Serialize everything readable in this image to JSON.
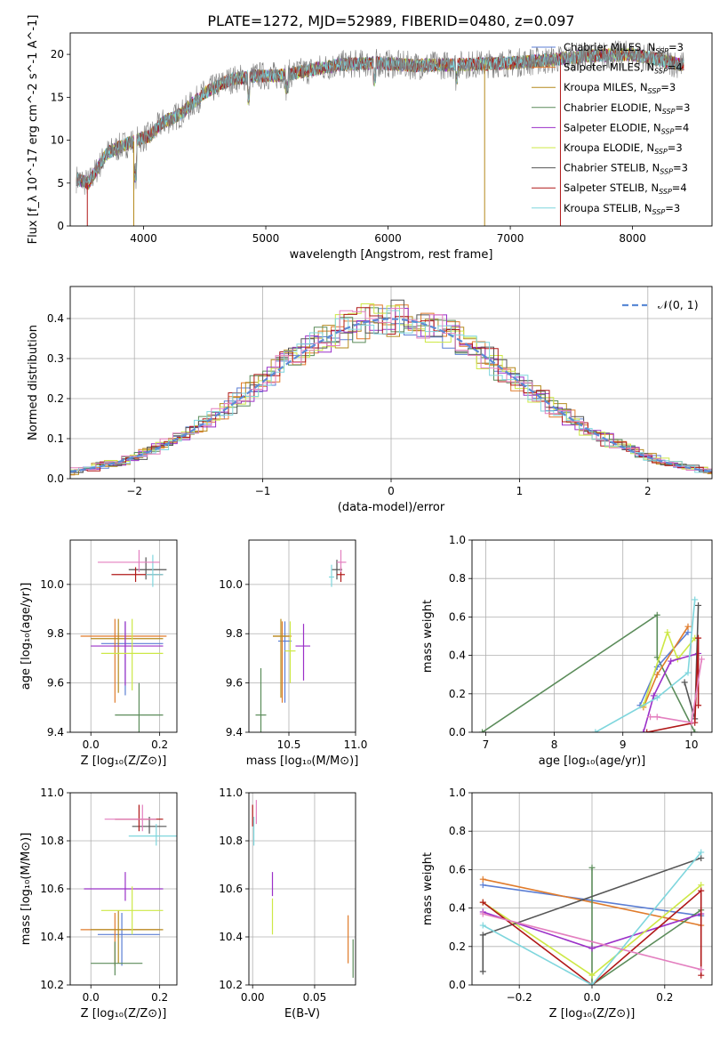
{
  "figure": {
    "title": "PLATE=1272, MJD=52989, FIBERID=0480, z=0.097"
  },
  "colors": {
    "Chabrier MILES": "#5b7ed4",
    "Salpeter MILES": "#e07b2b",
    "Kroupa MILES": "#b58a1e",
    "Chabrier ELODIE": "#5b8c5a",
    "Salpeter ELODIE": "#9b30c8",
    "Kroupa ELODIE": "#cde846",
    "Chabrier STELIB": "#555555",
    "Salpeter STELIB": "#b01818",
    "Kroupa STELIB": "#7fd6dd",
    "pink": "#e37fbf"
  },
  "chart_data": [
    {
      "id": "spectrum",
      "type": "line",
      "xlabel": "wavelength [Angstrom, rest frame]",
      "ylabel": "Flux [f_λ 10^-17 erg cm^-2 s^-1 A^-1]",
      "xlim": [
        3400,
        8650
      ],
      "ylim": [
        0,
        22.5
      ],
      "xticks": [
        4000,
        5000,
        6000,
        7000,
        8000
      ],
      "yticks": [
        0,
        5,
        10,
        15,
        20
      ],
      "grid": false,
      "legend_position": "right",
      "legend": [
        {
          "label": "Chabrier MILES, N",
          "sub": "SSP",
          "suffix": "=3",
          "color_key": "Chabrier MILES"
        },
        {
          "label": "Salpeter MILES, N",
          "sub": "SSP",
          "suffix": "=4",
          "color_key": "Salpeter MILES"
        },
        {
          "label": "Kroupa MILES, N",
          "sub": "SSP",
          "suffix": "=3",
          "color_key": "Kroupa MILES"
        },
        {
          "label": "Chabrier ELODIE, N",
          "sub": "SSP",
          "suffix": "=3",
          "color_key": "Chabrier ELODIE"
        },
        {
          "label": "Salpeter ELODIE, N",
          "sub": "SSP",
          "suffix": "=4",
          "color_key": "Salpeter ELODIE"
        },
        {
          "label": "Kroupa ELODIE, N",
          "sub": "SSP",
          "suffix": "=3",
          "color_key": "Kroupa ELODIE"
        },
        {
          "label": "Chabrier STELIB, N",
          "sub": "SSP",
          "suffix": "=3",
          "color_key": "Chabrier STELIB"
        },
        {
          "label": "Salpeter STELIB, N",
          "sub": "SSP",
          "suffix": "=4",
          "color_key": "Salpeter STELIB"
        },
        {
          "label": "Kroupa STELIB, N",
          "sub": "SSP",
          "suffix": "=3",
          "color_key": "Kroupa STELIB"
        }
      ],
      "continuum": [
        [
          3450,
          5.5
        ],
        [
          3550,
          5.0
        ],
        [
          3700,
          8.5
        ],
        [
          3850,
          9.5
        ],
        [
          3950,
          10.0
        ],
        [
          4050,
          10.5
        ],
        [
          4150,
          12.0
        ],
        [
          4300,
          13.0
        ],
        [
          4500,
          15.5
        ],
        [
          4700,
          17.0
        ],
        [
          4900,
          17.5
        ],
        [
          5100,
          17.5
        ],
        [
          5300,
          18.0
        ],
        [
          5600,
          18.8
        ],
        [
          5900,
          19.0
        ],
        [
          6200,
          18.7
        ],
        [
          6600,
          18.8
        ],
        [
          7000,
          19.0
        ],
        [
          7300,
          19.3
        ],
        [
          7600,
          19.8
        ],
        [
          8000,
          20.0
        ],
        [
          8400,
          18.8
        ]
      ]
    },
    {
      "id": "residuals",
      "type": "histogram",
      "xlabel": "(data-model)/error",
      "ylabel": "Normed distribution",
      "xlim": [
        -2.5,
        2.5
      ],
      "ylim": [
        0,
        0.48
      ],
      "xticks": [
        -2,
        -1,
        0,
        1,
        2
      ],
      "yticks": [
        0.0,
        0.1,
        0.2,
        0.3,
        0.4
      ],
      "grid": true,
      "legend": [
        {
          "label": "𝒩(0, 1)",
          "style": "dashed",
          "color": "#5b8ad6"
        }
      ],
      "bin_width": 0.1
    },
    {
      "id": "age-vs-z",
      "type": "errorbar",
      "xlabel": "Z [log₁₀(Z/Z⊙)]",
      "ylabel": "age  [log₁₀(age/yr)]",
      "xlim": [
        -0.06,
        0.25
      ],
      "ylim": [
        9.4,
        10.18
      ],
      "xticks": [
        0.0,
        0.2
      ],
      "yticks": [
        9.4,
        9.6,
        9.8,
        10.0
      ],
      "grid": true,
      "points": [
        {
          "color_key": "Chabrier MILES",
          "x": 0.1,
          "y": 9.76,
          "xerr": [
            0.07,
            0.11
          ],
          "yerr": [
            0.21,
            0.09
          ]
        },
        {
          "color_key": "Salpeter MILES",
          "x": 0.07,
          "y": 9.79,
          "xerr": [
            0.1,
            0.15
          ],
          "yerr": [
            0.27,
            0.07
          ]
        },
        {
          "color_key": "Kroupa MILES",
          "x": 0.08,
          "y": 9.78,
          "xerr": [
            0.08,
            0.13
          ],
          "yerr": [
            0.22,
            0.08
          ]
        },
        {
          "color_key": "Chabrier ELODIE",
          "x": 0.14,
          "y": 9.47,
          "xerr": [
            0.07,
            0.07
          ],
          "yerr": [
            0.08,
            0.13
          ]
        },
        {
          "color_key": "Salpeter ELODIE",
          "x": 0.1,
          "y": 9.75,
          "xerr": [
            0.1,
            0.11
          ],
          "yerr": [
            0.16,
            0.1
          ]
        },
        {
          "color_key": "Kroupa ELODIE",
          "x": 0.12,
          "y": 9.72,
          "xerr": [
            0.09,
            0.09
          ],
          "yerr": [
            0.15,
            0.14
          ]
        },
        {
          "color_key": "Chabrier STELIB",
          "x": 0.16,
          "y": 10.06,
          "xerr": [
            0.05,
            0.06
          ],
          "yerr": [
            0.04,
            0.05
          ]
        },
        {
          "color_key": "Salpeter STELIB",
          "x": 0.13,
          "y": 10.04,
          "xerr": [
            0.07,
            0.08
          ],
          "yerr": [
            0.03,
            0.03
          ]
        },
        {
          "color_key": "Kroupa STELIB",
          "x": 0.18,
          "y": 10.04,
          "xerr": [
            0.02,
            0.03
          ],
          "yerr": [
            0.05,
            0.08
          ]
        },
        {
          "color_key": "pink",
          "x": 0.14,
          "y": 10.09,
          "xerr": [
            0.12,
            0.06
          ],
          "yerr": [
            0.04,
            0.05
          ]
        }
      ]
    },
    {
      "id": "age-vs-mass",
      "type": "errorbar",
      "xlabel": "mass [log₁₀(M/M⊙)]",
      "ylabel": "",
      "xlim": [
        10.2,
        11.0
      ],
      "ylim": [
        9.4,
        10.18
      ],
      "xticks": [
        10.5,
        11.0
      ],
      "yticks": [
        9.4,
        9.6,
        9.8,
        10.0
      ],
      "grid": true,
      "points": [
        {
          "color_key": "Chabrier MILES",
          "x": 10.47,
          "y": 9.77,
          "xerr": [
            0.05,
            0.05
          ],
          "yerr": [
            0.25,
            0.08
          ]
        },
        {
          "color_key": "Salpeter MILES",
          "x": 10.45,
          "y": 9.79,
          "xerr": [
            0.07,
            0.07
          ],
          "yerr": [
            0.27,
            0.06
          ]
        },
        {
          "color_key": "Kroupa MILES",
          "x": 10.44,
          "y": 9.79,
          "xerr": [
            0.06,
            0.06
          ],
          "yerr": [
            0.25,
            0.07
          ]
        },
        {
          "color_key": "Chabrier ELODIE",
          "x": 10.29,
          "y": 9.47,
          "xerr": [
            0.04,
            0.04
          ],
          "yerr": [
            0.07,
            0.19
          ]
        },
        {
          "color_key": "Salpeter ELODIE",
          "x": 10.61,
          "y": 9.75,
          "xerr": [
            0.06,
            0.05
          ],
          "yerr": [
            0.14,
            0.09
          ]
        },
        {
          "color_key": "Kroupa ELODIE",
          "x": 10.51,
          "y": 9.73,
          "xerr": [
            0.04,
            0.04
          ],
          "yerr": [
            0.13,
            0.12
          ]
        },
        {
          "color_key": "Chabrier STELIB",
          "x": 10.86,
          "y": 10.06,
          "xerr": [
            0.04,
            0.04
          ],
          "yerr": [
            0.04,
            0.04
          ]
        },
        {
          "color_key": "Salpeter STELIB",
          "x": 10.89,
          "y": 10.04,
          "xerr": [
            0.03,
            0.03
          ],
          "yerr": [
            0.03,
            0.03
          ]
        },
        {
          "color_key": "Kroupa STELIB",
          "x": 10.82,
          "y": 10.03,
          "xerr": [
            0.02,
            0.02
          ],
          "yerr": [
            0.04,
            0.05
          ]
        },
        {
          "color_key": "pink",
          "x": 10.89,
          "y": 10.09,
          "xerr": [
            0.03,
            0.04
          ],
          "yerr": [
            0.04,
            0.05
          ]
        }
      ]
    },
    {
      "id": "massweight-vs-age",
      "type": "line",
      "xlabel": "age  [log₁₀(age/yr)]",
      "ylabel": "mass weight",
      "xlim": [
        6.8,
        10.3
      ],
      "ylim": [
        0,
        1.0
      ],
      "xticks": [
        7,
        8,
        9,
        10
      ],
      "yticks": [
        0.0,
        0.2,
        0.4,
        0.6,
        0.8,
        1.0
      ],
      "grid": true,
      "series": [
        {
          "color_key": "Chabrier ELODIE",
          "x": [
            6.95,
            9.5,
            9.5,
            10.05
          ],
          "y": [
            0.0,
            0.61,
            0.39,
            0.0
          ]
        },
        {
          "color_key": "Chabrier MILES",
          "x": [
            9.25,
            9.5,
            9.95
          ],
          "y": [
            0.14,
            0.34,
            0.52
          ]
        },
        {
          "color_key": "Salpeter MILES",
          "x": [
            9.3,
            9.5,
            9.95
          ],
          "y": [
            0.13,
            0.3,
            0.55
          ]
        },
        {
          "color_key": "Kroupa ELODIE",
          "x": [
            9.3,
            9.65,
            9.8,
            10.05
          ],
          "y": [
            0.14,
            0.52,
            0.38,
            0.49
          ]
        },
        {
          "color_key": "Salpeter ELODIE",
          "x": [
            9.3,
            9.45,
            9.7,
            10.1
          ],
          "y": [
            0.0,
            0.19,
            0.37,
            0.41
          ]
        },
        {
          "color_key": "Kroupa STELIB",
          "x": [
            8.6,
            9.5,
            9.95,
            10.05
          ],
          "y": [
            0.0,
            0.18,
            0.31,
            0.69
          ]
        },
        {
          "color_key": "Chabrier STELIB",
          "x": [
            9.9,
            10.05,
            10.1
          ],
          "y": [
            0.26,
            0.07,
            0.66
          ]
        },
        {
          "color_key": "Salpeter STELIB",
          "x": [
            9.35,
            10.05,
            10.1,
            10.1
          ],
          "y": [
            0.0,
            0.05,
            0.49,
            0.14
          ]
        },
        {
          "color_key": "pink",
          "x": [
            9.4,
            9.5,
            10.0,
            10.15
          ],
          "y": [
            0.08,
            0.08,
            0.05,
            0.38
          ]
        }
      ]
    },
    {
      "id": "mass-vs-z",
      "type": "errorbar",
      "xlabel": "Z [log₁₀(Z/Z⊙)]",
      "ylabel": "mass [log₁₀(M/M⊙)]",
      "xlim": [
        -0.06,
        0.25
      ],
      "ylim": [
        10.2,
        11.0
      ],
      "xticks": [
        0.0,
        0.2
      ],
      "yticks": [
        10.2,
        10.4,
        10.6,
        10.8,
        11.0
      ],
      "grid": true,
      "points": [
        {
          "color_key": "Chabrier MILES",
          "x": 0.09,
          "y": 10.41,
          "xerr": [
            0.07,
            0.11
          ],
          "yerr": [
            0.13,
            0.09
          ]
        },
        {
          "color_key": "Salpeter MILES",
          "x": 0.07,
          "y": 10.43,
          "xerr": [
            0.1,
            0.13
          ],
          "yerr": [
            0.15,
            0.07
          ]
        },
        {
          "color_key": "Kroupa MILES",
          "x": 0.08,
          "y": 10.43,
          "xerr": [
            0.08,
            0.13
          ],
          "yerr": [
            0.14,
            0.08
          ]
        },
        {
          "color_key": "Chabrier ELODIE",
          "x": 0.07,
          "y": 10.29,
          "xerr": [
            0.07,
            0.08
          ],
          "yerr": [
            0.05,
            0.09
          ]
        },
        {
          "color_key": "Salpeter ELODIE",
          "x": 0.1,
          "y": 10.6,
          "xerr": [
            0.12,
            0.11
          ],
          "yerr": [
            0.05,
            0.07
          ]
        },
        {
          "color_key": "Kroupa ELODIE",
          "x": 0.12,
          "y": 10.51,
          "xerr": [
            0.09,
            0.09
          ],
          "yerr": [
            0.1,
            0.1
          ]
        },
        {
          "color_key": "Chabrier STELIB",
          "x": 0.17,
          "y": 10.86,
          "xerr": [
            0.05,
            0.05
          ],
          "yerr": [
            0.03,
            0.04
          ]
        },
        {
          "color_key": "Salpeter STELIB",
          "x": 0.14,
          "y": 10.89,
          "xerr": [
            0.07,
            0.07
          ],
          "yerr": [
            0.05,
            0.06
          ]
        },
        {
          "color_key": "Kroupa STELIB",
          "x": 0.19,
          "y": 10.82,
          "xerr": [
            0.08,
            0.07
          ],
          "yerr": [
            0.04,
            0.05
          ]
        },
        {
          "color_key": "pink",
          "x": 0.15,
          "y": 10.89,
          "xerr": [
            0.11,
            0.04
          ],
          "yerr": [
            0.05,
            0.06
          ]
        }
      ]
    },
    {
      "id": "mass-vs-ebv",
      "type": "errorbar",
      "xlabel": "E(B-V)",
      "ylabel": "",
      "xlim": [
        -0.003,
        0.083
      ],
      "ylim": [
        10.2,
        11.0
      ],
      "xticks": [
        0.0,
        0.05
      ],
      "yticks": [
        10.2,
        10.4,
        10.6,
        10.8,
        11.0
      ],
      "grid": true,
      "points": [
        {
          "color_key": "Salpeter MILES",
          "x": 0.077,
          "y": 10.39,
          "xerr": [
            0,
            0
          ],
          "yerr": [
            0.1,
            0.1
          ]
        },
        {
          "color_key": "Chabrier ELODIE",
          "x": 0.081,
          "y": 10.31,
          "xerr": [
            0,
            0
          ],
          "yerr": [
            0.08,
            0.08
          ]
        },
        {
          "color_key": "Salpeter ELODIE",
          "x": 0.016,
          "y": 10.62,
          "xerr": [
            0,
            0
          ],
          "yerr": [
            0.05,
            0.05
          ]
        },
        {
          "color_key": "Kroupa ELODIE",
          "x": 0.016,
          "y": 10.49,
          "xerr": [
            0,
            0
          ],
          "yerr": [
            0.08,
            0.07
          ]
        },
        {
          "color_key": "Salpeter STELIB",
          "x": 0.0,
          "y": 10.91,
          "xerr": [
            0,
            0
          ],
          "yerr": [
            0.05,
            0.04
          ]
        },
        {
          "color_key": "Kroupa STELIB",
          "x": 0.001,
          "y": 10.84,
          "xerr": [
            0,
            0
          ],
          "yerr": [
            0.06,
            0.06
          ]
        },
        {
          "color_key": "pink",
          "x": 0.003,
          "y": 10.92,
          "xerr": [
            0,
            0
          ],
          "yerr": [
            0.05,
            0.05
          ]
        }
      ]
    },
    {
      "id": "massweight-vs-z",
      "type": "line",
      "xlabel": "Z [log₁₀(Z/Z⊙)]",
      "ylabel": "mass weight",
      "xlim": [
        -0.33,
        0.33
      ],
      "ylim": [
        0,
        1.0
      ],
      "xticks": [
        -0.2,
        0.0,
        0.2
      ],
      "yticks": [
        0.0,
        0.2,
        0.4,
        0.6,
        0.8,
        1.0
      ],
      "grid": true,
      "series": [
        {
          "color_key": "Chabrier MILES",
          "x": [
            -0.3,
            0.3
          ],
          "y": [
            0.52,
            0.36
          ]
        },
        {
          "color_key": "Salpeter MILES",
          "x": [
            -0.3,
            0.3
          ],
          "y": [
            0.55,
            0.31
          ]
        },
        {
          "color_key": "Chabrier ELODIE",
          "x": [
            0.0,
            0.0,
            0.3
          ],
          "y": [
            0.61,
            0.0,
            0.39
          ]
        },
        {
          "color_key": "Salpeter ELODIE",
          "x": [
            -0.3,
            0.0,
            0.3
          ],
          "y": [
            0.38,
            0.19,
            0.37
          ]
        },
        {
          "color_key": "Kroupa ELODIE",
          "x": [
            -0.3,
            0.0,
            0.3
          ],
          "y": [
            0.43,
            0.05,
            0.52
          ]
        },
        {
          "color_key": "Chabrier STELIB",
          "x": [
            -0.3,
            -0.3,
            0.3
          ],
          "y": [
            0.07,
            0.26,
            0.66
          ]
        },
        {
          "color_key": "Salpeter STELIB",
          "x": [
            -0.3,
            0.0,
            0.3,
            0.3
          ],
          "y": [
            0.43,
            0.0,
            0.49,
            0.05
          ]
        },
        {
          "color_key": "Kroupa STELIB",
          "x": [
            -0.3,
            0.0,
            0.3
          ],
          "y": [
            0.31,
            0.0,
            0.69
          ]
        },
        {
          "color_key": "pink",
          "x": [
            -0.3,
            0.3
          ],
          "y": [
            0.37,
            0.08
          ]
        }
      ]
    }
  ]
}
